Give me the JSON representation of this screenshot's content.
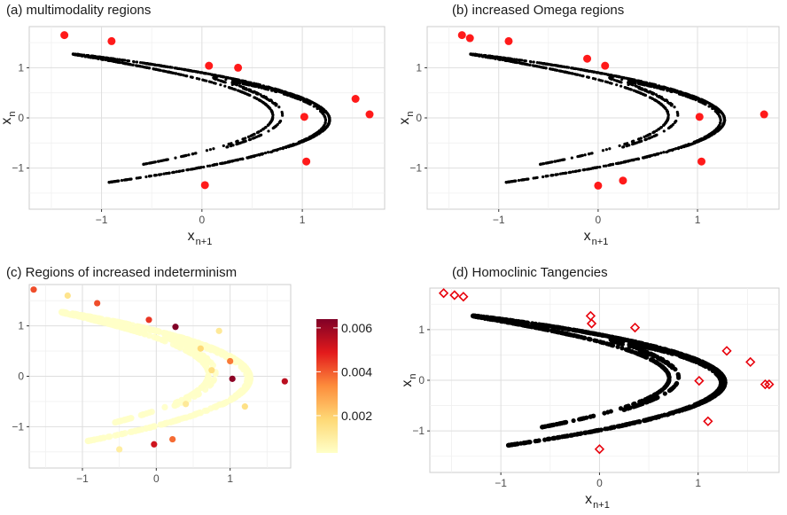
{
  "chart_data": [
    {
      "type": "scatter",
      "title": "(a) multimodality regions",
      "xlabel": "x",
      "xlabel_sub": "n+1",
      "ylabel": "x",
      "ylabel_sub": "n",
      "xlim": [
        -1.72,
        1.82
      ],
      "ylim": [
        -1.82,
        1.82
      ],
      "xticks": [
        -1,
        0,
        1
      ],
      "xtick_labels": [
        "−1",
        "0",
        "1"
      ],
      "yticks": [
        -1,
        0,
        1
      ],
      "ytick_labels": [
        "−1",
        "0",
        "1"
      ],
      "grid": true,
      "series": [
        {
          "kind": "attractor",
          "color": "#000000"
        },
        {
          "kind": "highlight",
          "color": "#ff1a1a",
          "points": [
            [
              -1.37,
              1.65
            ],
            [
              -0.9,
              1.53
            ],
            [
              0.07,
              1.04
            ],
            [
              0.36,
              1.0
            ],
            [
              1.53,
              0.38
            ],
            [
              1.02,
              0.02
            ],
            [
              1.67,
              0.07
            ],
            [
              1.04,
              -0.87
            ],
            [
              0.03,
              -1.34
            ]
          ]
        }
      ]
    },
    {
      "type": "scatter",
      "title": "(b) increased Omega regions",
      "xlabel": "x",
      "xlabel_sub": "n+1",
      "ylabel": "x",
      "ylabel_sub": "n",
      "xlim": [
        -1.72,
        1.82
      ],
      "ylim": [
        -1.82,
        1.82
      ],
      "xticks": [
        -1,
        0,
        1
      ],
      "xtick_labels": [
        "−1",
        "0",
        "1"
      ],
      "yticks": [
        -1,
        0,
        1
      ],
      "ytick_labels": [
        "−1",
        "0",
        "1"
      ],
      "grid": true,
      "series": [
        {
          "kind": "attractor",
          "color": "#000000"
        },
        {
          "kind": "highlight",
          "color": "#ff1a1a",
          "points": [
            [
              -1.37,
              1.65
            ],
            [
              -1.29,
              1.59
            ],
            [
              -0.9,
              1.53
            ],
            [
              -0.11,
              1.18
            ],
            [
              0.07,
              1.04
            ],
            [
              1.02,
              0.02
            ],
            [
              1.67,
              0.07
            ],
            [
              1.04,
              -0.87
            ],
            [
              0.25,
              -1.25
            ],
            [
              0.0,
              -1.35
            ]
          ]
        }
      ]
    },
    {
      "type": "scatter",
      "title": "(c) Regions of increased indeterminism",
      "xlabel": "",
      "ylabel": "",
      "xlim": [
        -1.72,
        1.82
      ],
      "ylim": [
        -1.82,
        1.82
      ],
      "xticks": [
        -1,
        0,
        1
      ],
      "xtick_labels": [
        "−1",
        "0",
        "1"
      ],
      "yticks": [
        -1,
        0,
        1
      ],
      "ytick_labels": [
        "−1",
        "0",
        "1"
      ],
      "grid": true,
      "colorbar": {
        "min": 0.0003,
        "max": 0.0064,
        "ticks": [
          0.002,
          0.004,
          0.006
        ],
        "tick_labels": [
          "0.002",
          "0.004",
          "0.006"
        ],
        "colors": [
          "#ffffc8",
          "#fed976",
          "#fd8d3c",
          "#e31a1c",
          "#800026"
        ]
      },
      "series": [
        {
          "kind": "colored",
          "points": [
            [
              -1.66,
              1.72,
              0.0042
            ],
            [
              -0.8,
              1.45,
              0.0042
            ],
            [
              -0.1,
              1.12,
              0.0045
            ],
            [
              0.26,
              0.98,
              0.0064
            ],
            [
              1.0,
              0.3,
              0.0036
            ],
            [
              1.03,
              -0.05,
              0.0062
            ],
            [
              1.74,
              -0.1,
              0.0055
            ],
            [
              -0.03,
              -1.35,
              0.0052
            ],
            [
              0.22,
              -1.25,
              0.0038
            ],
            [
              -1.2,
              1.6,
              0.0014
            ],
            [
              0.6,
              0.55,
              0.0018
            ],
            [
              0.75,
              0.12,
              0.0016
            ],
            [
              0.4,
              -0.55,
              0.0012
            ],
            [
              1.2,
              -0.6,
              0.0015
            ],
            [
              0.85,
              0.9,
              0.0012
            ],
            [
              -0.5,
              -1.45,
              0.001
            ]
          ]
        }
      ]
    },
    {
      "type": "scatter",
      "title": "(d) Homoclinic Tangencies",
      "xlabel": "x",
      "xlabel_sub": "n+1",
      "ylabel": "x",
      "ylabel_sub": "n",
      "xlim": [
        -1.72,
        1.82
      ],
      "ylim": [
        -1.82,
        1.82
      ],
      "xticks": [
        -1,
        0,
        1
      ],
      "xtick_labels": [
        "−1",
        "0",
        "1"
      ],
      "yticks": [
        -1,
        0,
        1
      ],
      "ytick_labels": [
        "−1",
        "0",
        "1"
      ],
      "grid": true,
      "series": [
        {
          "kind": "band",
          "color": "#000000"
        },
        {
          "kind": "diamonds",
          "color": "#e8000b",
          "points": [
            [
              -1.58,
              1.72
            ],
            [
              -1.47,
              1.68
            ],
            [
              -1.38,
              1.65
            ],
            [
              -0.09,
              1.27
            ],
            [
              -0.08,
              1.12
            ],
            [
              0.36,
              1.04
            ],
            [
              1.29,
              0.58
            ],
            [
              1.53,
              0.36
            ],
            [
              1.01,
              -0.01
            ],
            [
              1.68,
              -0.08
            ],
            [
              1.72,
              -0.08
            ],
            [
              1.1,
              -0.81
            ],
            [
              0.0,
              -1.36
            ]
          ]
        }
      ]
    }
  ]
}
